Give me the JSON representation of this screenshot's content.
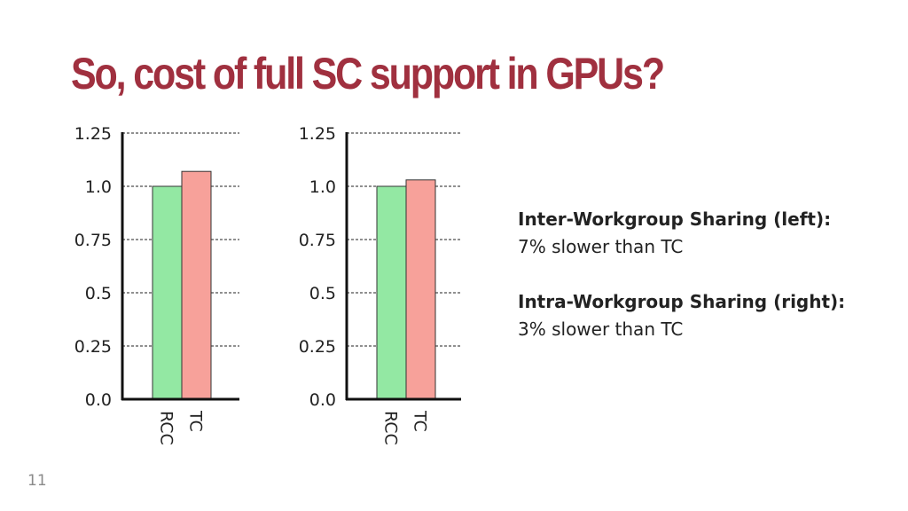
{
  "slide": {
    "title": "So, cost of full SC support in GPUs?",
    "page_number": "11",
    "title_color": "#a0303f"
  },
  "callout": {
    "left_heading": "Inter-Workgroup Sharing (left):",
    "left_text": "7% slower than TC",
    "right_heading": "Intra-Workgroup Sharing (right):",
    "right_text": "3% slower than TC"
  },
  "colors": {
    "rcc": "#93e8a3",
    "tc": "#f7a19a",
    "grid": "#222222"
  },
  "chart_data": [
    {
      "type": "bar",
      "categories": [
        "RCC",
        "TC"
      ],
      "values": [
        1.0,
        1.07
      ],
      "ylim": [
        0,
        1.25
      ],
      "yticks": [
        "0.0",
        "0.25",
        "0.5",
        "0.75",
        "1.0",
        "1.25"
      ],
      "grid": "dashed horizontal",
      "title": "",
      "xlabel": "",
      "ylabel": ""
    },
    {
      "type": "bar",
      "categories": [
        "RCC",
        "TC"
      ],
      "values": [
        1.0,
        1.03
      ],
      "ylim": [
        0,
        1.25
      ],
      "yticks": [
        "0.0",
        "0.25",
        "0.5",
        "0.75",
        "1.0",
        "1.25"
      ],
      "grid": "dashed horizontal",
      "title": "",
      "xlabel": "",
      "ylabel": ""
    }
  ]
}
